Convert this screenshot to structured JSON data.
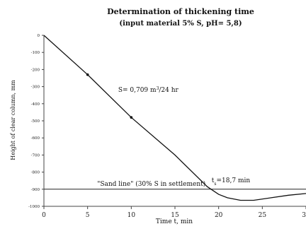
{
  "chart_data": {
    "type": "line",
    "title": "Determination of thickening time",
    "subtitle": "(input material 5% S,  pH= 5,8)",
    "xlabel": "Time t, min",
    "ylabel": "Height of clear column, mm",
    "xlim": [
      0,
      30
    ],
    "ylim": [
      -1000,
      0
    ],
    "x_ticks": [
      0,
      5,
      10,
      15,
      20,
      25,
      30
    ],
    "y_ticks": [
      0,
      -100,
      -200,
      -300,
      -400,
      -500,
      -600,
      -700,
      -800,
      -900,
      -1000
    ],
    "grid": false,
    "legend": "none",
    "series": [
      {
        "points": [
          [
            0,
            0
          ],
          [
            5,
            -230
          ],
          [
            10,
            -480
          ],
          [
            15,
            -700
          ],
          [
            18.7,
            -885
          ],
          [
            20,
            -930
          ],
          [
            21,
            -950
          ],
          [
            22.5,
            -965
          ],
          [
            24,
            -965
          ],
          [
            26,
            -950
          ],
          [
            28,
            -935
          ],
          [
            30,
            -925
          ]
        ],
        "markers": [
          [
            5,
            -230
          ],
          [
            10,
            -480
          ]
        ]
      }
    ],
    "reference_line": {
      "y": -900,
      "label": "\"Sand line\" (30% S in settlement)"
    },
    "annotations": [
      {
        "text": "S= 0,709 m",
        "sup": "3",
        "after": "/24 hr",
        "x": 8.5,
        "y": -330
      },
      {
        "text": "t",
        "sub": "s",
        "after": "=18,7 min",
        "x": 19.2,
        "y": -860
      }
    ]
  }
}
